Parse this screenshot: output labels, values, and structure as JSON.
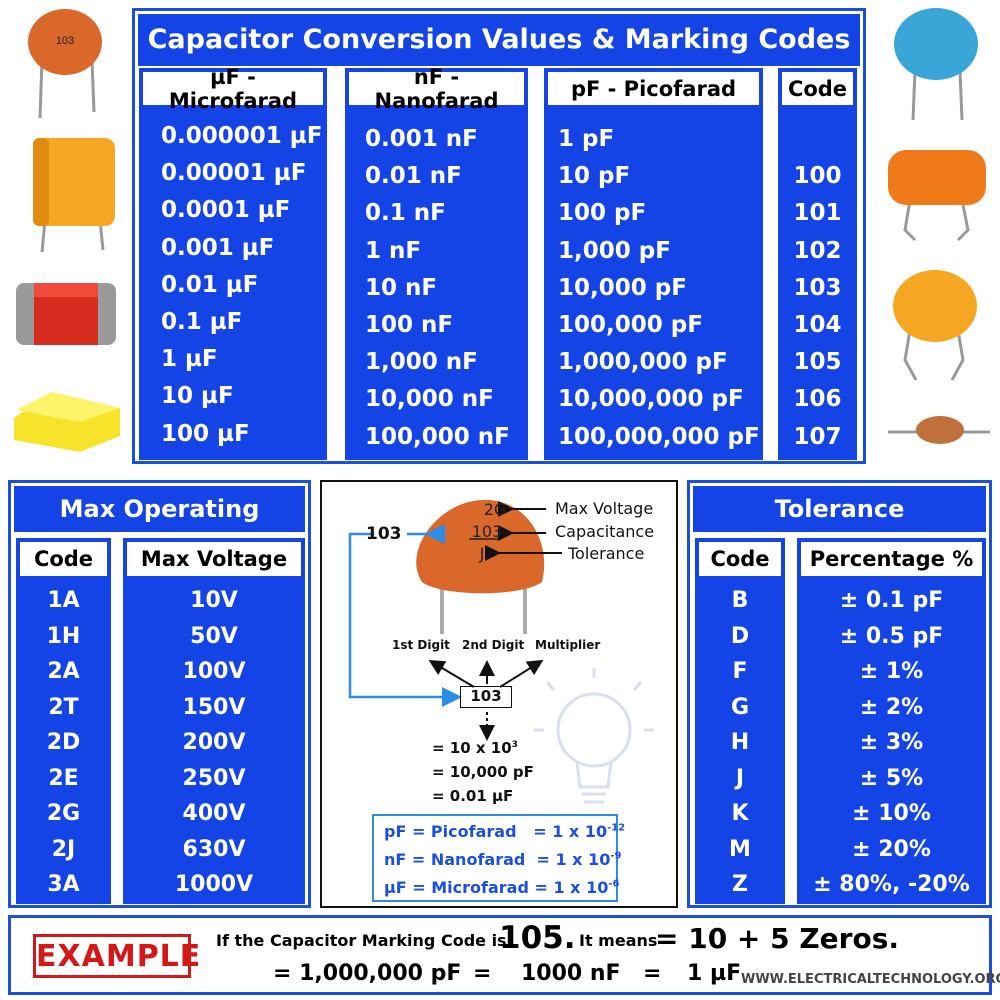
{
  "conversion": {
    "title": "Capacitor Conversion Values & Marking Codes",
    "headers": {
      "uf": "µF - Microfarad",
      "nf": "nF - Nanofarad",
      "pf": "pF - Picofarad",
      "code": "Code"
    },
    "uf": [
      "0.000001 µF",
      "0.00001 µF",
      "0.0001 µF",
      "0.001 µF",
      "0.01 µF",
      "0.1 µF",
      "1 µF",
      "10 µF",
      "100 µF"
    ],
    "nf": [
      "0.001 nF",
      "0.01 nF",
      "0.1 nF",
      "1 nF",
      "10 nF",
      "100 nF",
      "1,000 nF",
      "10,000 nF",
      "100,000 nF"
    ],
    "pf": [
      "1 pF",
      "10 pF",
      "100 pF",
      "1,000 pF",
      "10,000 pF",
      "100,000 pF",
      "1,000,000 pF",
      "10,000,000 pF",
      "100,000,000 pF"
    ],
    "code": [
      "",
      "100",
      "101",
      "102",
      "103",
      "104",
      "105",
      "106",
      "107"
    ]
  },
  "voltage": {
    "title": "Max Operating Voltage",
    "headers": {
      "code": "Code",
      "max": "Max Voltage"
    },
    "codes": [
      "1A",
      "1H",
      "2A",
      "2T",
      "2D",
      "2E",
      "2G",
      "2J",
      "3A"
    ],
    "values": [
      "10V",
      "50V",
      "100V",
      "150V",
      "200V",
      "250V",
      "400V",
      "630V",
      "1000V"
    ]
  },
  "tolerance": {
    "title": "Tolerance",
    "headers": {
      "code": "Code",
      "pct": "Percentage %"
    },
    "codes": [
      "B",
      "D",
      "F",
      "G",
      "H",
      "J",
      "K",
      "M",
      "Z"
    ],
    "values": [
      "± 0.1 pF",
      "± 0.5 pF",
      "± 1%",
      "± 2%",
      "± 3%",
      "± 5%",
      "± 10%",
      "± 20%",
      "± 80%, -20%"
    ]
  },
  "diagram": {
    "cap_marks": [
      "2G",
      "103",
      "J"
    ],
    "labels": [
      "Max Voltage",
      "Capacitance",
      "Tolerance"
    ],
    "code_left": "103",
    "digits": [
      "1st Digit",
      "2nd Digit",
      "Multiplier"
    ],
    "code_box": "103",
    "eq1_base": "= 10 x 10",
    "eq1_exp": "3",
    "eq2": "= 10,000 pF",
    "eq3": "= 0.01 µF",
    "units": [
      {
        "name": "pF = Picofarad",
        "val": "= 1 x 10",
        "exp": "-12"
      },
      {
        "name": "nF = Nanofarad",
        "val": "= 1 x 10",
        "exp": "-9"
      },
      {
        "name": "µF = Microfarad",
        "val": "= 1 x 10",
        "exp": "-6"
      }
    ]
  },
  "example": {
    "label": "EXAMPLE",
    "line1a": "If the Capacitor Marking Code is",
    "code": "105.",
    "line1b": "It means",
    "line1c": "= 10 + 5 Zeros.",
    "line2": [
      "= 1,000,000 pF",
      "=",
      "1000 nF",
      "=",
      "1 µF"
    ],
    "source": "WWW.ELECTRICALTECHNOLOGY.ORG"
  },
  "colors": {
    "primary_blue": "#1544e6",
    "accent_red": "#d41818",
    "capacitor_orange": "#d9682a",
    "arrow_blue": "#2a8ee8"
  }
}
